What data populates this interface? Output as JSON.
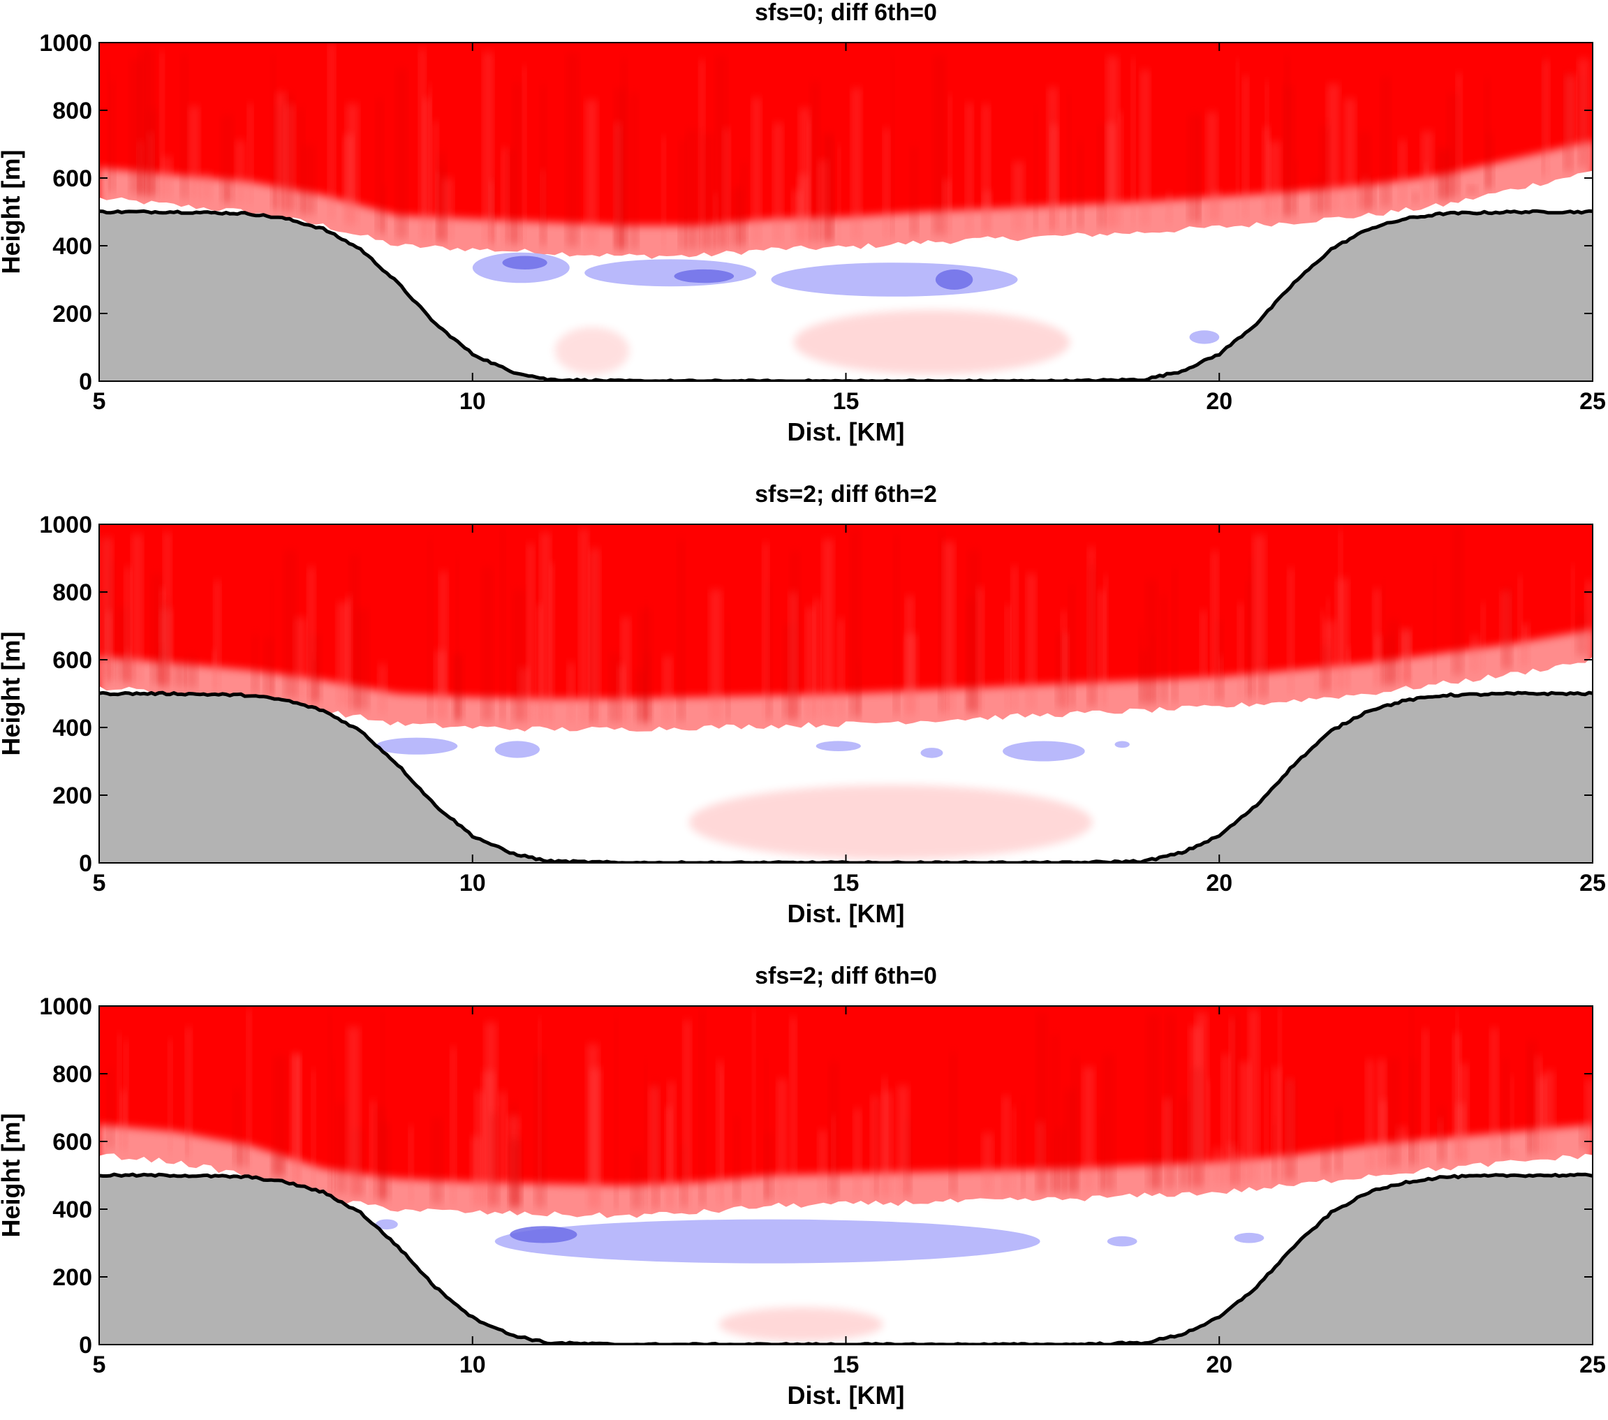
{
  "figure": {
    "background": "#ffffff"
  },
  "chart_data": [
    {
      "type": "heatmap",
      "title": "sfs=0; diff 6th=0",
      "xlabel": "Dist. [KM]",
      "ylabel": "Height [m]",
      "xlim": [
        5,
        25
      ],
      "ylim": [
        0,
        1000
      ],
      "xticks": [
        "5",
        "10",
        "15",
        "20",
        "25"
      ],
      "yticks": [
        "0",
        "200",
        "400",
        "600",
        "800",
        "1000"
      ],
      "colors": {
        "positive": "#ff0000",
        "negative": "#6f6fe8",
        "terrain": "#b3b3b3"
      },
      "terrain": {
        "x": [
          5,
          6,
          7,
          7.5,
          8,
          8.5,
          9,
          9.5,
          10,
          10.5,
          11,
          12,
          14,
          16,
          18,
          19,
          19.5,
          20,
          20.5,
          21,
          21.5,
          22,
          22.5,
          23,
          24,
          25
        ],
        "height": [
          500,
          500,
          495,
          480,
          450,
          390,
          290,
          170,
          80,
          30,
          5,
          0,
          0,
          0,
          0,
          5,
          30,
          80,
          170,
          290,
          390,
          450,
          480,
          495,
          500,
          500
        ]
      },
      "boundary_layer_top": {
        "x": [
          5,
          6,
          7,
          8,
          9,
          10,
          11,
          12,
          13,
          14,
          15,
          16,
          17,
          18,
          19,
          20,
          21,
          22,
          23,
          24,
          25
        ],
        "height": [
          540,
          520,
          500,
          460,
          400,
          390,
          380,
          370,
          370,
          390,
          395,
          410,
          420,
          430,
          440,
          455,
          470,
          490,
          520,
          570,
          620
        ]
      },
      "negative_regions": [
        {
          "x": [
            10.0,
            11.3
          ],
          "height": [
            290,
            380
          ],
          "strength": 0.5
        },
        {
          "x": [
            10.4,
            11.0
          ],
          "height": [
            330,
            370
          ],
          "strength": 1.0
        },
        {
          "x": [
            11.5,
            13.8
          ],
          "height": [
            280,
            360
          ],
          "strength": 0.5
        },
        {
          "x": [
            12.7,
            13.5
          ],
          "height": [
            290,
            330
          ],
          "strength": 1.0
        },
        {
          "x": [
            14.0,
            17.3
          ],
          "height": [
            250,
            350
          ],
          "strength": 0.5
        },
        {
          "x": [
            16.2,
            16.7
          ],
          "height": [
            270,
            330
          ],
          "strength": 1.0
        },
        {
          "x": [
            19.6,
            20.0
          ],
          "height": [
            110,
            150
          ],
          "strength": 0.5
        }
      ],
      "weak_positive_regions": [
        {
          "x": [
            14.3,
            18.0
          ],
          "height": [
            20,
            210
          ],
          "strength": 0.15
        },
        {
          "x": [
            11.1,
            12.1
          ],
          "height": [
            20,
            160
          ],
          "strength": 0.12
        }
      ]
    },
    {
      "type": "heatmap",
      "title": "sfs=2; diff 6th=2",
      "xlabel": "Dist. [KM]",
      "ylabel": "Height [m]",
      "xlim": [
        5,
        25
      ],
      "ylim": [
        0,
        1000
      ],
      "xticks": [
        "5",
        "10",
        "15",
        "20",
        "25"
      ],
      "yticks": [
        "0",
        "200",
        "400",
        "600",
        "800",
        "1000"
      ],
      "colors": {
        "positive": "#ff0000",
        "negative": "#6f6fe8",
        "terrain": "#b3b3b3"
      },
      "terrain": {
        "x": [
          5,
          6,
          7,
          7.5,
          8,
          8.5,
          9,
          9.5,
          10,
          10.5,
          11,
          12,
          14,
          16,
          18,
          19,
          19.5,
          20,
          20.5,
          21,
          21.5,
          22,
          22.5,
          23,
          24,
          25
        ],
        "height": [
          500,
          500,
          495,
          480,
          450,
          390,
          290,
          170,
          80,
          30,
          5,
          0,
          0,
          0,
          0,
          5,
          30,
          80,
          170,
          290,
          390,
          450,
          480,
          495,
          500,
          500
        ]
      },
      "boundary_layer_top": {
        "x": [
          5,
          6,
          7,
          8,
          9,
          10,
          11,
          12,
          13,
          14,
          15,
          16,
          17,
          18,
          19,
          20,
          21,
          22,
          23,
          24,
          25
        ],
        "height": [
          520,
          500,
          480,
          450,
          410,
          400,
          395,
          395,
          400,
          405,
          410,
          420,
          430,
          440,
          450,
          460,
          480,
          500,
          530,
          560,
          600
        ]
      },
      "negative_regions": [
        {
          "x": [
            8.7,
            9.8
          ],
          "height": [
            320,
            370
          ],
          "strength": 0.5
        },
        {
          "x": [
            10.3,
            10.9
          ],
          "height": [
            310,
            360
          ],
          "strength": 0.5
        },
        {
          "x": [
            14.6,
            15.2
          ],
          "height": [
            330,
            360
          ],
          "strength": 0.5
        },
        {
          "x": [
            16.0,
            16.3
          ],
          "height": [
            310,
            340
          ],
          "strength": 0.5
        },
        {
          "x": [
            17.1,
            18.2
          ],
          "height": [
            300,
            360
          ],
          "strength": 0.5
        },
        {
          "x": [
            18.6,
            18.8
          ],
          "height": [
            340,
            360
          ],
          "strength": 0.5
        }
      ],
      "weak_positive_regions": [
        {
          "x": [
            12.9,
            18.3
          ],
          "height": [
            10,
            230
          ],
          "strength": 0.15
        }
      ]
    },
    {
      "type": "heatmap",
      "title": "sfs=2; diff 6th=0",
      "xlabel": "Dist. [KM]",
      "ylabel": "Height [m]",
      "xlim": [
        5,
        25
      ],
      "ylim": [
        0,
        1000
      ],
      "xticks": [
        "5",
        "10",
        "15",
        "20",
        "25"
      ],
      "yticks": [
        "0",
        "200",
        "400",
        "600",
        "800",
        "1000"
      ],
      "colors": {
        "positive": "#ff0000",
        "negative": "#6f6fe8",
        "terrain": "#b3b3b3"
      },
      "terrain": {
        "x": [
          5,
          6,
          7,
          7.5,
          8,
          8.5,
          9,
          9.5,
          10,
          10.5,
          11,
          12,
          14,
          16,
          18,
          19,
          19.5,
          20,
          20.5,
          21,
          21.5,
          22,
          22.5,
          23,
          24,
          25
        ],
        "height": [
          500,
          500,
          495,
          480,
          450,
          390,
          290,
          170,
          80,
          30,
          5,
          0,
          0,
          0,
          0,
          5,
          30,
          80,
          170,
          290,
          390,
          450,
          480,
          495,
          500,
          500
        ]
      },
      "boundary_layer_top": {
        "x": [
          5,
          6,
          7,
          8,
          9,
          10,
          11,
          12,
          13,
          14,
          15,
          16,
          17,
          18,
          19,
          20,
          21,
          22,
          23,
          24,
          25
        ],
        "height": [
          560,
          540,
          500,
          430,
          400,
          390,
          385,
          380,
          390,
          410,
          415,
          420,
          425,
          430,
          440,
          450,
          470,
          500,
          520,
          540,
          560
        ]
      },
      "negative_regions": [
        {
          "x": [
            10.3,
            17.6
          ],
          "height": [
            240,
            370
          ],
          "strength": 0.5
        },
        {
          "x": [
            10.5,
            11.4
          ],
          "height": [
            300,
            350
          ],
          "strength": 1.0
        },
        {
          "x": [
            8.7,
            9.0
          ],
          "height": [
            340,
            370
          ],
          "strength": 0.5
        },
        {
          "x": [
            18.5,
            18.9
          ],
          "height": [
            290,
            320
          ],
          "strength": 0.5
        },
        {
          "x": [
            20.2,
            20.6
          ],
          "height": [
            300,
            330
          ],
          "strength": 0.5
        }
      ],
      "weak_positive_regions": [
        {
          "x": [
            13.3,
            15.5
          ],
          "height": [
            10,
            110
          ],
          "strength": 0.15
        }
      ]
    }
  ]
}
